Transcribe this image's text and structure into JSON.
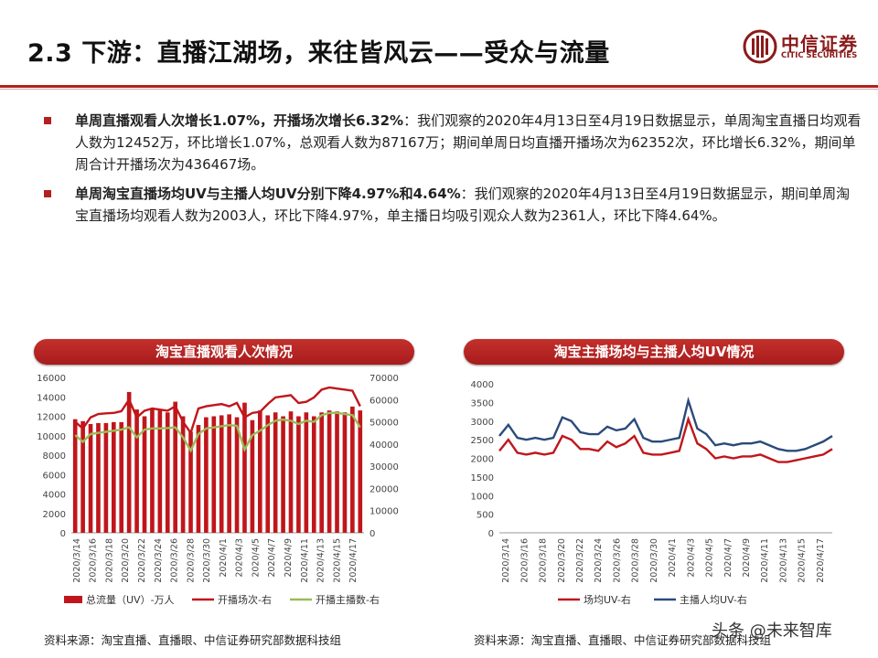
{
  "header": {
    "title": "2.3 下游：直播江湖场，来往皆风云——受众与流量",
    "logo_cn": "中信证券",
    "logo_en": "CITIC SECURITIES"
  },
  "bullets": [
    {
      "bold": "单周直播观看人次增长1.07%，开播场次增长6.32%",
      "text": "：我们观察的2020年4月13日至4月19日数据显示，单周淘宝直播日均观看人数为12452万，环比增长1.07%，总观看人数为87167万；期间单周日均直播开播场次为62352次，环比增长6.32%，期间单周合计开播场次为436467场。"
    },
    {
      "bold": "单周淘宝直播场均UV与主播人均UV分别下降4.97%和4.64%",
      "text": "：我们观察的2020年4月13日至4月19日数据显示，期间单周淘宝直播场均观看人数为2003人，环比下降4.97%，单主播日均吸引观众人数为2361人，环比下降4.64%。"
    }
  ],
  "charts": {
    "left_banner": "淘宝直播观看人次情况",
    "right_banner": "淘宝主播场均与主播人均UV情况",
    "left_source": "资料来源：淘宝直播、直播眼、中信证券研究部数据科技组",
    "right_source": "资料来源：淘宝直播、直播眼、中信证券研究部数据科技组"
  },
  "watermark": "头条 @未来智库",
  "colors": {
    "accent": "#b2201f",
    "bar": "#c0161b",
    "green": "#9bbb59",
    "navy": "#2a4a7b"
  },
  "chart_data": [
    {
      "type": "bar",
      "x_tick_labels": [
        "2020/3/14",
        "2020/3/16",
        "2020/3/18",
        "2020/3/20",
        "2020/3/22",
        "2020/3/24",
        "2020/3/26",
        "2020/3/28",
        "2020/3/30",
        "2020/4/1",
        "2020/4/3",
        "2020/4/5",
        "2020/4/7",
        "2020/4/9",
        "2020/4/11",
        "2020/4/13",
        "2020/4/15",
        "2020/4/17"
      ],
      "ylim_left": [
        0,
        16000
      ],
      "ylim_right": [
        0,
        70000
      ],
      "yticks_left": [
        0,
        2000,
        4000,
        6000,
        8000,
        10000,
        12000,
        14000,
        16000
      ],
      "yticks_right": [
        0,
        10000,
        20000,
        30000,
        40000,
        50000,
        60000,
        70000
      ],
      "series": [
        {
          "name": "总流量（UV）-万人",
          "kind": "bar",
          "axis": "left",
          "values": [
            11700,
            11500,
            11200,
            11300,
            11300,
            11400,
            11400,
            14500,
            12700,
            12000,
            12700,
            12600,
            12400,
            13500,
            12000,
            10400,
            11100,
            11900,
            12000,
            12100,
            12200,
            11900,
            13400,
            11600,
            12600,
            12100,
            12400,
            12000,
            12500,
            12000,
            12400,
            12000,
            12400,
            12600,
            12500,
            12400,
            13000,
            12600
          ]
        },
        {
          "name": "开播场次-右",
          "kind": "line",
          "axis": "right",
          "values": [
            50000,
            47000,
            52000,
            53500,
            53800,
            54000,
            54800,
            60000,
            52000,
            55000,
            56000,
            55500,
            55000,
            57000,
            50000,
            45000,
            56000,
            57000,
            57500,
            58000,
            57000,
            58500,
            52000,
            54000,
            54500,
            58000,
            61000,
            61500,
            62000,
            58500,
            59000,
            61000,
            64500,
            65500,
            65000,
            64500,
            64000,
            57000
          ]
        },
        {
          "name": "开播主播数-右",
          "kind": "line",
          "axis": "right",
          "values": [
            44000,
            41000,
            44500,
            45000,
            45500,
            46000,
            46500,
            47500,
            43000,
            46500,
            47000,
            47000,
            47200,
            47500,
            43000,
            37000,
            44500,
            47000,
            47500,
            48000,
            48500,
            48200,
            37500,
            44000,
            46000,
            48500,
            50500,
            51000,
            50500,
            49000,
            50500,
            50000,
            53000,
            54000,
            54000,
            53500,
            53000,
            47500
          ]
        }
      ]
    },
    {
      "type": "line",
      "x_tick_labels": [
        "2020/3/14",
        "2020/3/16",
        "2020/3/18",
        "2020/3/20",
        "2020/3/22",
        "2020/3/24",
        "2020/3/26",
        "2020/3/28",
        "2020/3/30",
        "2020/4/1",
        "2020/4/3",
        "2020/4/5",
        "2020/4/7",
        "2020/4/9",
        "2020/4/11",
        "2020/4/13",
        "2020/4/15",
        "2020/4/17"
      ],
      "ylim": [
        0,
        4000
      ],
      "yticks": [
        0,
        500,
        1000,
        1500,
        2000,
        2500,
        3000,
        3500,
        4000
      ],
      "series": [
        {
          "name": "场均UV-右",
          "values": [
            2200,
            2500,
            2150,
            2100,
            2150,
            2100,
            2150,
            2600,
            2500,
            2250,
            2250,
            2200,
            2450,
            2300,
            2400,
            2600,
            2150,
            2100,
            2100,
            2150,
            2200,
            3050,
            2400,
            2250,
            2000,
            2050,
            2000,
            2050,
            2050,
            2100,
            2000,
            1900,
            1900,
            1950,
            2000,
            2050,
            2100,
            2250
          ]
        },
        {
          "name": "主播人均UV-右",
          "values": [
            2600,
            2900,
            2550,
            2500,
            2550,
            2500,
            2550,
            3100,
            3000,
            2700,
            2650,
            2650,
            2850,
            2750,
            2800,
            3050,
            2550,
            2450,
            2450,
            2500,
            2550,
            3550,
            2800,
            2650,
            2350,
            2400,
            2350,
            2400,
            2400,
            2450,
            2350,
            2250,
            2200,
            2200,
            2250,
            2350,
            2450,
            2600
          ]
        }
      ]
    }
  ]
}
